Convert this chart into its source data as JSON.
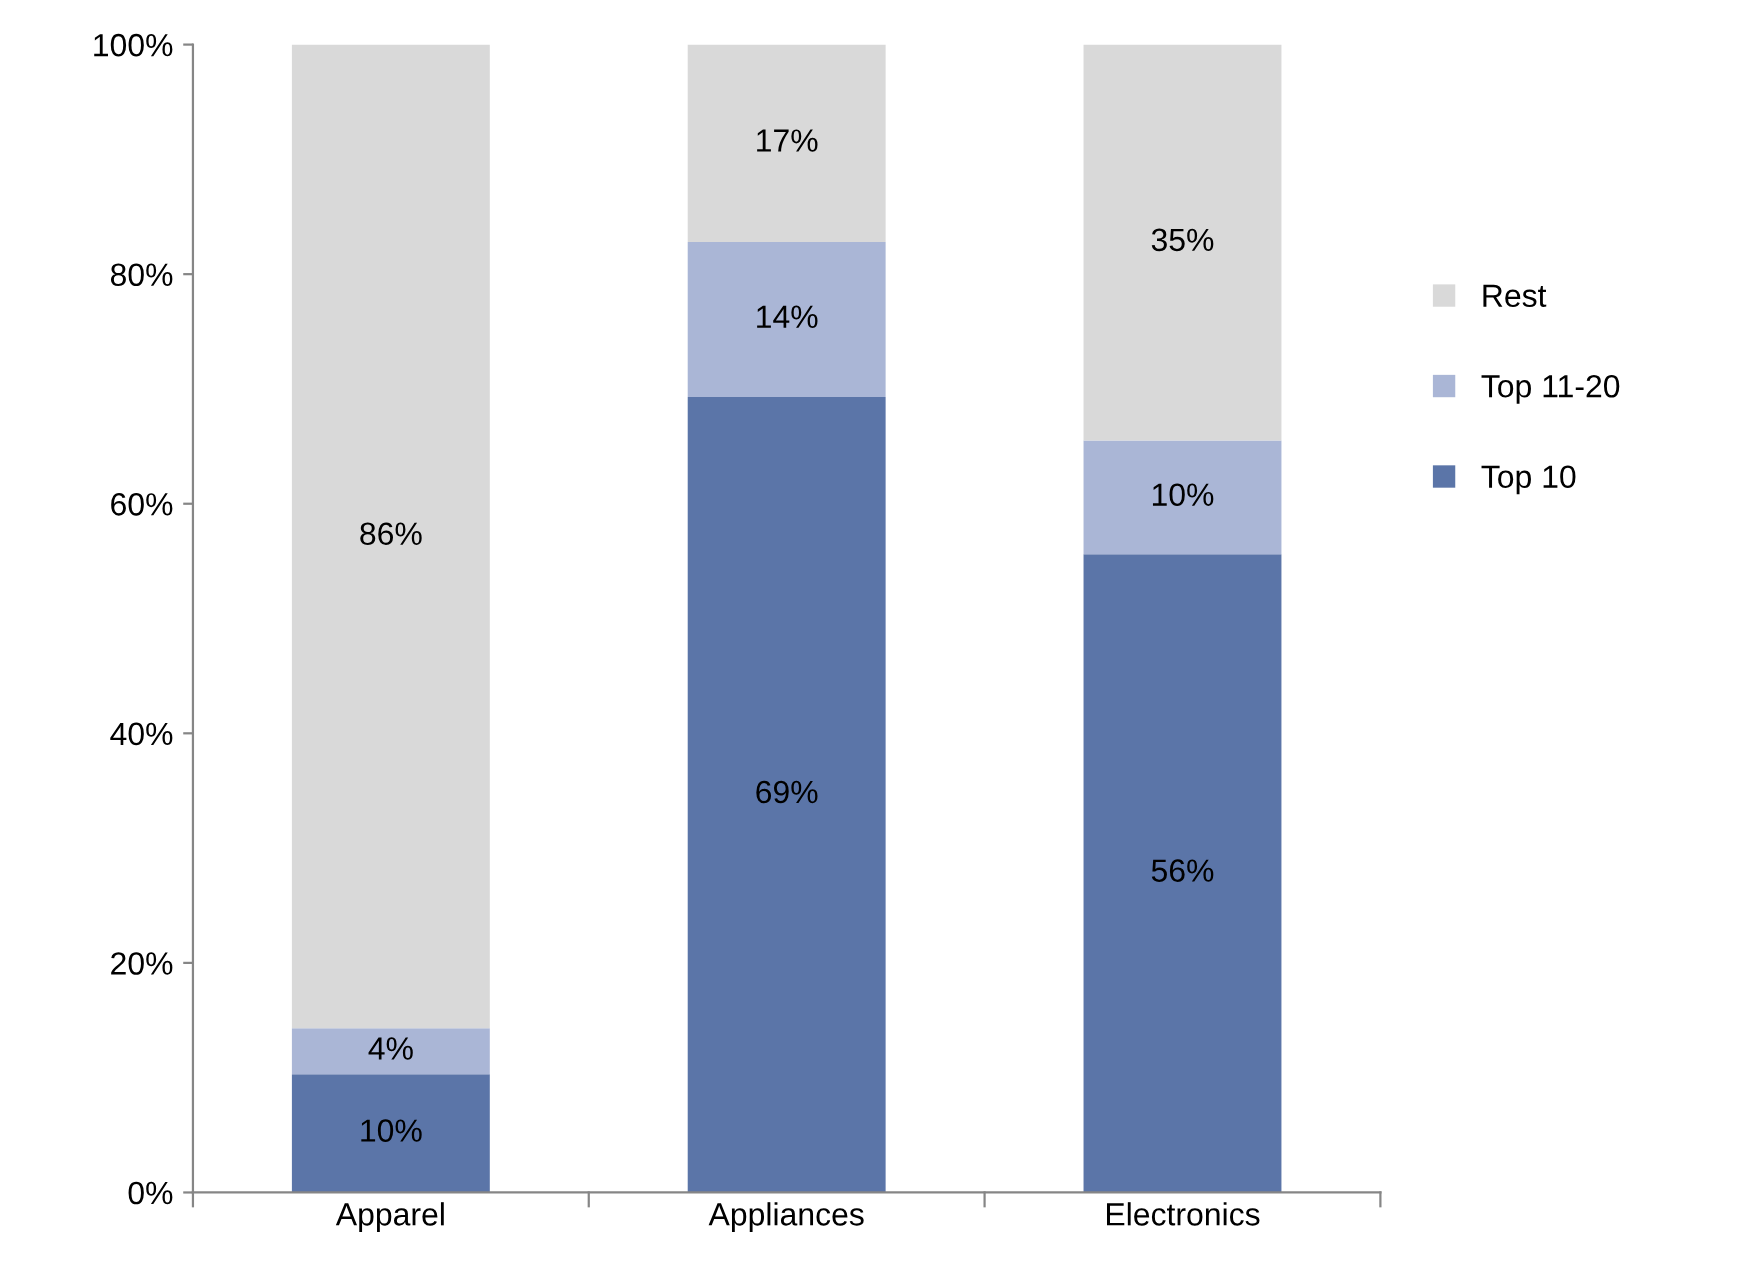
{
  "chart_data": {
    "type": "bar",
    "stacked": true,
    "categories": [
      "Apparel",
      "Appliances",
      "Electronics"
    ],
    "series": [
      {
        "name": "Top 10",
        "color": "#5b75a8",
        "values": [
          10.3,
          69.3,
          55.6
        ],
        "value_labels": [
          "10%",
          "69%",
          "56%"
        ]
      },
      {
        "name": "Top 11-20",
        "color": "#aab6d6",
        "values": [
          4.0,
          13.5,
          9.9
        ],
        "value_labels": [
          "4%",
          "14%",
          "10%"
        ]
      },
      {
        "name": "Rest",
        "color": "#d9d9d9",
        "values": [
          85.7,
          17.2,
          34.5
        ],
        "value_labels": [
          "86%",
          "17%",
          "35%"
        ]
      }
    ],
    "ylim": [
      0,
      100
    ],
    "yticks": [
      {
        "value": 0,
        "label": "0%"
      },
      {
        "value": 20,
        "label": "20%"
      },
      {
        "value": 40,
        "label": "40%"
      },
      {
        "value": 60,
        "label": "60%"
      },
      {
        "value": 80,
        "label": "80%"
      },
      {
        "value": 100,
        "label": "100%"
      }
    ],
    "legend": "right",
    "grid": false
  }
}
